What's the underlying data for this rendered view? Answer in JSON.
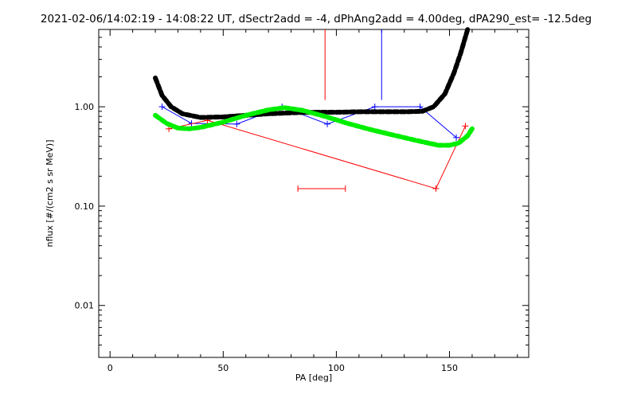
{
  "chart_data": {
    "type": "line",
    "title": "2021-02-06/14:02:19 - 14:08:22 UT, dSectr2add = -4, dPhAng2add = 4.00deg, dPA290_est= -12.5deg",
    "xlabel": "PA [deg]",
    "ylabel": "nflux [#/(cm2 s sr MeV)]",
    "xlim": [
      -5,
      185
    ],
    "ylim": [
      0.003,
      6
    ],
    "yscale": "log",
    "xticks": [
      0,
      50,
      100,
      150
    ],
    "xtick_labels": [
      "0",
      "50",
      "100",
      "150"
    ],
    "yticks": [
      0.01,
      0.1,
      1.0
    ],
    "ytick_labels": [
      "0.01",
      "0.10",
      "1.00"
    ],
    "grid": false,
    "series": [
      {
        "style": "line-plus",
        "color": "#0000ff",
        "x": [
          23,
          36,
          56,
          76,
          96,
          117,
          137,
          153
        ],
        "y": [
          1.0,
          0.68,
          0.67,
          1.0,
          0.67,
          1.0,
          1.0,
          0.49
        ],
        "xerr": [
          [
            117,
            137
          ]
        ]
      },
      {
        "style": "line-plus",
        "color": "#ff0000",
        "x": [
          26,
          43,
          144,
          157
        ],
        "y": [
          0.6,
          0.73,
          0.15,
          0.64
        ],
        "hsegments": [
          [
            83,
            104,
            0.15
          ]
        ],
        "vsegments": [
          [
            95,
            1.17,
            6
          ]
        ]
      },
      {
        "style": "thick-dashed",
        "color": "#000000",
        "x": [
          20,
          23,
          27,
          32,
          40,
          50,
          60,
          70,
          80,
          90,
          100,
          110,
          120,
          130,
          138,
          143,
          148,
          152,
          155,
          158
        ],
        "y": [
          1.95,
          1.3,
          1.0,
          0.85,
          0.78,
          0.79,
          0.82,
          0.85,
          0.87,
          0.88,
          0.88,
          0.89,
          0.89,
          0.89,
          0.9,
          1.0,
          1.35,
          2.2,
          3.5,
          6.0
        ]
      },
      {
        "style": "thick-dashed",
        "color": "#00ee00",
        "x": [
          20,
          25,
          30,
          35,
          40,
          50,
          60,
          70,
          77,
          85,
          95,
          105,
          115,
          125,
          135,
          145,
          150,
          154,
          158,
          160
        ],
        "y": [
          0.82,
          0.68,
          0.61,
          0.6,
          0.62,
          0.7,
          0.82,
          0.93,
          0.98,
          0.92,
          0.8,
          0.68,
          0.59,
          0.52,
          0.46,
          0.41,
          0.41,
          0.43,
          0.51,
          0.6
        ]
      }
    ]
  }
}
